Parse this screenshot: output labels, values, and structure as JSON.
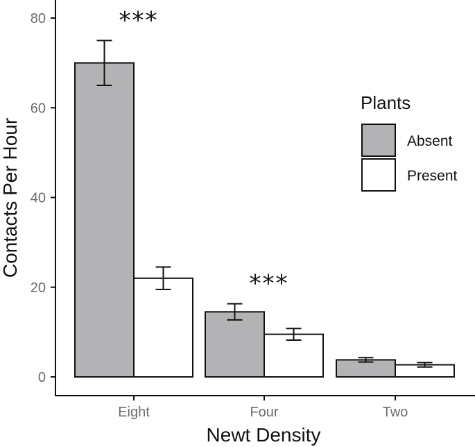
{
  "chart_data": {
    "type": "bar",
    "xlabel": "Newt Density",
    "ylabel": "Contacts Per Hour",
    "categories": [
      "Eight",
      "Four",
      "Two"
    ],
    "ylim": [
      0,
      80
    ],
    "yticks": [
      0,
      20,
      40,
      60,
      80
    ],
    "grid": false,
    "legend": {
      "title": "Plants",
      "placement": "right"
    },
    "series": [
      {
        "name": "Absent",
        "color": "#b3b3b5",
        "values": [
          70,
          14.5,
          3.8
        ],
        "error_low": [
          65,
          12.7,
          3.3
        ],
        "error_high": [
          75,
          16.3,
          4.3
        ]
      },
      {
        "name": "Present",
        "color": "#ffffff",
        "values": [
          22,
          9.5,
          2.7
        ],
        "error_low": [
          19.5,
          8.2,
          2.2
        ],
        "error_high": [
          24.5,
          10.8,
          3.2
        ]
      }
    ],
    "annotations": [
      {
        "category": "Eight",
        "text": "***"
      },
      {
        "category": "Four",
        "text": "***"
      }
    ]
  }
}
